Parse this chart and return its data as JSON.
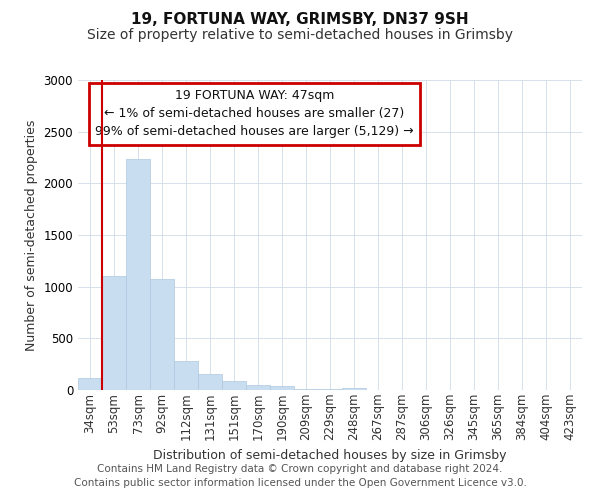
{
  "title": "19, FORTUNA WAY, GRIMSBY, DN37 9SH",
  "subtitle": "Size of property relative to semi-detached houses in Grimsby",
  "xlabel": "Distribution of semi-detached houses by size in Grimsby",
  "ylabel": "Number of semi-detached properties",
  "categories": [
    "34sqm",
    "53sqm",
    "73sqm",
    "92sqm",
    "112sqm",
    "131sqm",
    "151sqm",
    "170sqm",
    "190sqm",
    "209sqm",
    "229sqm",
    "248sqm",
    "267sqm",
    "287sqm",
    "306sqm",
    "326sqm",
    "345sqm",
    "365sqm",
    "384sqm",
    "404sqm",
    "423sqm"
  ],
  "values": [
    120,
    1100,
    2240,
    1070,
    285,
    155,
    90,
    50,
    35,
    10,
    5,
    20,
    0,
    0,
    0,
    0,
    0,
    0,
    0,
    0,
    0
  ],
  "bar_color": "#c9ddf0",
  "bar_edge_color": "#c9ddf0",
  "ylim": [
    0,
    3000
  ],
  "annotation_text": "19 FORTUNA WAY: 47sqm\n← 1% of semi-detached houses are smaller (27)\n99% of semi-detached houses are larger (5,129) →",
  "annotation_box_color": "#cc0000",
  "footer_line1": "Contains HM Land Registry data © Crown copyright and database right 2024.",
  "footer_line2": "Contains public sector information licensed under the Open Government Licence v3.0.",
  "title_fontsize": 11,
  "subtitle_fontsize": 10,
  "label_fontsize": 9,
  "tick_fontsize": 8.5,
  "footer_fontsize": 7.5,
  "annotation_fontsize": 9
}
